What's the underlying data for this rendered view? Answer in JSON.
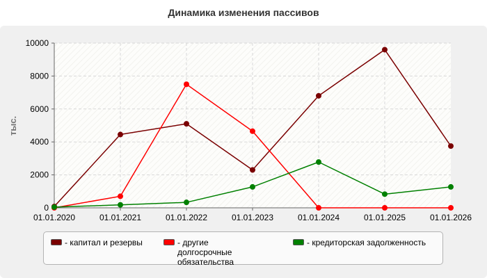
{
  "chart_data": {
    "type": "line",
    "title": "Динамика изменения пассивов",
    "ylabel": "тыс.",
    "xlabel": "",
    "categories": [
      "01.01.2020",
      "01.01.2021",
      "01.01.2022",
      "01.01.2023",
      "01.01.2024",
      "01.01.2025",
      "01.01.2026"
    ],
    "ylim": [
      0,
      10000
    ],
    "yticks": [
      "0",
      "2000",
      "4000",
      "6000",
      "8000",
      "10000"
    ],
    "grid": true,
    "legend_position": "bottom",
    "series": [
      {
        "name": "- капитал и резервы",
        "color": "#7a0000",
        "values": [
          80,
          4450,
          5100,
          2300,
          6800,
          9600,
          3750
        ]
      },
      {
        "name": "- другие долгосрочные обязательства",
        "color": "#ff0000",
        "values": [
          0,
          700,
          7500,
          4650,
          0,
          0,
          0
        ]
      },
      {
        "name": "- кредиторская задолженность",
        "color": "#008000",
        "values": [
          40,
          180,
          330,
          1270,
          2780,
          830,
          1270
        ]
      }
    ]
  }
}
